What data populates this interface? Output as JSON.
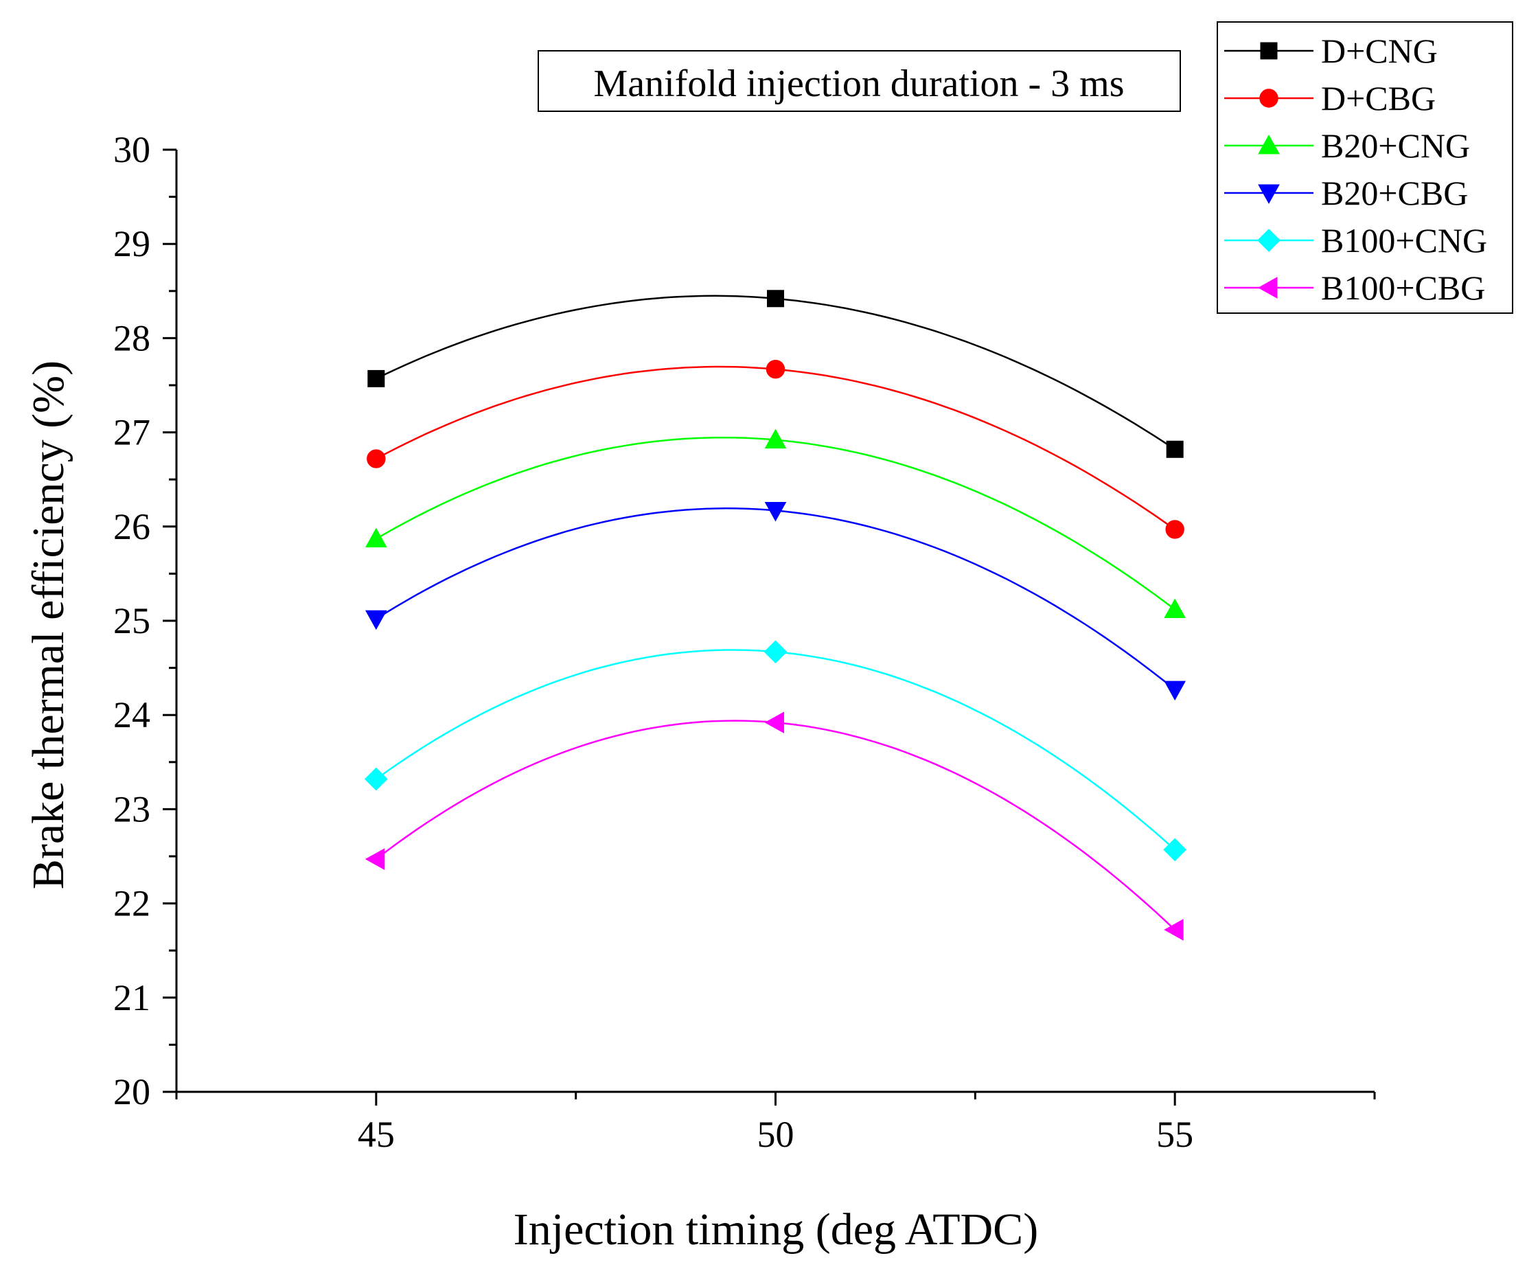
{
  "chart_data": {
    "type": "line",
    "title": "",
    "annotation": "Manifold injection duration - 3 ms",
    "xlabel": "Injection timing (deg ATDC)",
    "ylabel": "Brake thermal efficiency (%)",
    "xlim": [
      42.5,
      57.5
    ],
    "ylim": [
      20,
      30
    ],
    "x_ticks": [
      45,
      50,
      55
    ],
    "y_ticks": [
      20,
      21,
      22,
      23,
      24,
      25,
      26,
      27,
      28,
      29,
      30
    ],
    "x": [
      45,
      50,
      55
    ],
    "legend_position": "top-right",
    "grid": false,
    "series": [
      {
        "name": "D+CNG",
        "values": [
          27.57,
          28.42,
          26.82
        ],
        "color": "#000000",
        "marker": "square"
      },
      {
        "name": "D+CBG",
        "values": [
          26.72,
          27.67,
          25.97
        ],
        "color": "#ff0000",
        "marker": "circle"
      },
      {
        "name": "B20+CNG",
        "values": [
          25.87,
          26.92,
          25.12
        ],
        "color": "#00ff00",
        "marker": "triangle-up"
      },
      {
        "name": "B20+CBG",
        "values": [
          25.02,
          26.17,
          24.27
        ],
        "color": "#0000ff",
        "marker": "triangle-down"
      },
      {
        "name": "B100+CNG",
        "values": [
          23.32,
          24.67,
          22.57
        ],
        "color": "#00ffff",
        "marker": "diamond"
      },
      {
        "name": "B100+CBG",
        "values": [
          22.47,
          23.92,
          21.72
        ],
        "color": "#ff00ff",
        "marker": "triangle-left"
      }
    ]
  }
}
